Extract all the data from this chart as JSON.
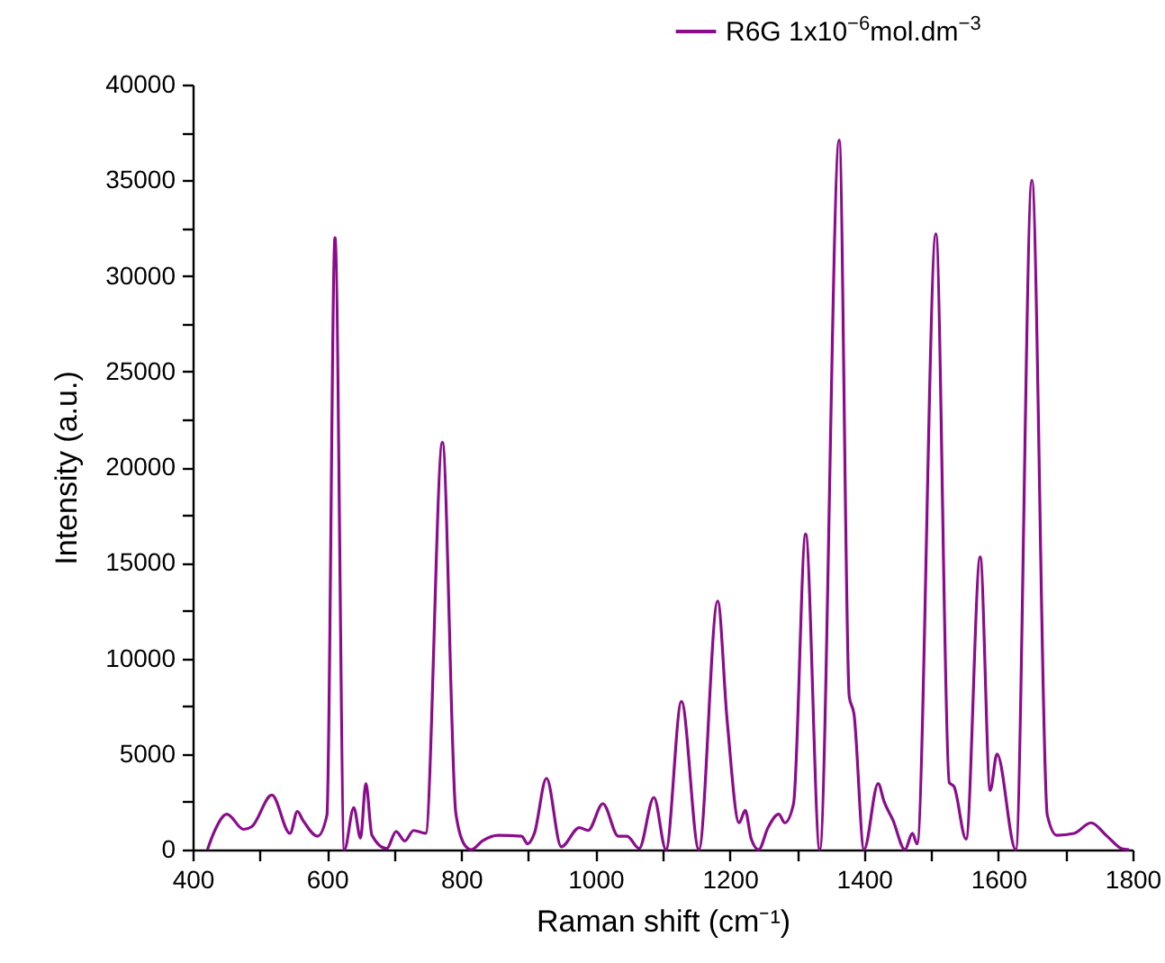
{
  "chart_data": {
    "type": "line",
    "xlabel": "Raman shift (cm⁻¹)",
    "ylabel": "Intensity (a.u.)",
    "xlim": [
      400,
      1800
    ],
    "ylim": [
      0,
      40000
    ],
    "xticks": [
      400,
      {
        "value": 500,
        "label": null
      },
      600,
      {
        "value": 700,
        "label": null
      },
      800,
      {
        "value": 900,
        "label": null
      },
      1000,
      {
        "value": 1100,
        "label": null
      },
      1200,
      {
        "value": 1300,
        "label": null
      },
      1400,
      {
        "value": 1500,
        "label": null
      },
      1600,
      {
        "value": 1700,
        "label": null
      },
      1800
    ],
    "yticks": [
      0,
      {
        "value": 2500,
        "label": null
      },
      5000,
      {
        "value": 7500,
        "label": null
      },
      10000,
      {
        "value": 12500,
        "label": null
      },
      15000,
      {
        "value": 17500,
        "label": null
      },
      20000,
      {
        "value": 22500,
        "label": null
      },
      25000,
      {
        "value": 27500,
        "label": null
      },
      30000,
      {
        "value": 32500,
        "label": null
      },
      35000,
      {
        "value": 37500,
        "label": null
      },
      40000
    ],
    "grid": false,
    "legend": "top right",
    "marker": "none",
    "line_style": "solid",
    "x": [
      422,
      433,
      451,
      476,
      488,
      518,
      545,
      556,
      564,
      586,
      600,
      612,
      626,
      640,
      650,
      658,
      667,
      689,
      703,
      716,
      729,
      747,
      772,
      792,
      806,
      815,
      832,
      855,
      890,
      899,
      909,
      927,
      949,
      976,
      989,
      1011,
      1034,
      1047,
      1065,
      1087,
      1105,
      1128,
      1154,
      1182,
      1196,
      1214,
      1223,
      1232,
      1243,
      1257,
      1273,
      1282,
      1295,
      1313,
      1334,
      1363,
      1378,
      1385,
      1400,
      1421,
      1430,
      1443,
      1461,
      1472,
      1479,
      1507,
      1527,
      1534,
      1552,
      1573,
      1588,
      1598,
      1626,
      1650,
      1673,
      1687,
      1713,
      1738,
      1762,
      1784,
      1795
    ],
    "series": [
      {
        "name": "R6G 1x10$^{−6}$mol.dm$^{−3}$",
        "color": "#8c0a8c",
        "values": [
          0,
          1000,
          1850,
          1060,
          1200,
          2850,
          850,
          2000,
          1550,
          700,
          1800,
          32000,
          0,
          2200,
          600,
          3450,
          750,
          50,
          950,
          450,
          1000,
          850,
          21300,
          1900,
          200,
          0,
          470,
          750,
          700,
          300,
          850,
          3730,
          150,
          1150,
          1000,
          2400,
          700,
          700,
          60,
          2730,
          0,
          7750,
          0,
          13000,
          6800,
          1400,
          2050,
          550,
          0,
          1150,
          1850,
          1400,
          2400,
          16500,
          0,
          37100,
          8000,
          7100,
          0,
          3450,
          2500,
          1550,
          0,
          850,
          300,
          32200,
          3500,
          3300,
          550,
          15300,
          3100,
          5000,
          0,
          35000,
          1800,
          750,
          850,
          1400,
          700,
          50,
          0
        ]
      }
    ]
  }
}
